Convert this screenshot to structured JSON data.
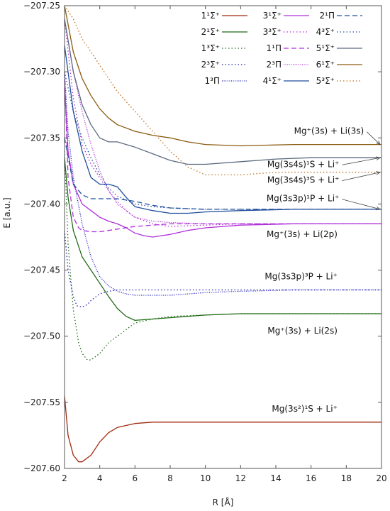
{
  "chart_data": {
    "type": "line",
    "title": "",
    "xlabel": "R [Å]",
    "ylabel": "E [a.u.]",
    "xlim": [
      2,
      20
    ],
    "ylim": [
      -207.6,
      -207.25
    ],
    "xticks": [
      2,
      4,
      6,
      8,
      10,
      12,
      14,
      16,
      18,
      20
    ],
    "yticks": [
      -207.25,
      -207.3,
      -207.35,
      -207.4,
      -207.45,
      -207.5,
      -207.55,
      -207.6
    ],
    "ytick_labels": [
      "−207.25",
      "−207.30",
      "−207.35",
      "−207.40",
      "−207.45",
      "−207.50",
      "−207.55",
      "−207.60"
    ],
    "grid": false,
    "legend_position": "top-right",
    "series": [
      {
        "name": "1¹Σ⁺",
        "color": "#a0290f",
        "dash": "solid",
        "x": [
          2,
          2.2,
          2.5,
          2.8,
          3,
          3.5,
          4,
          4.5,
          5,
          6,
          7,
          8,
          10,
          12,
          15,
          20
        ],
        "y": [
          -207.545,
          -207.575,
          -207.59,
          -207.595,
          -207.595,
          -207.59,
          -207.58,
          -207.573,
          -207.569,
          -207.566,
          -207.565,
          -207.565,
          -207.565,
          -207.565,
          -207.565,
          -207.565
        ]
      },
      {
        "name": "2¹Σ⁺",
        "color": "#1f6b14",
        "dash": "solid",
        "x": [
          2,
          2.2,
          2.5,
          3,
          3.5,
          4,
          4.5,
          5,
          5.5,
          6,
          7,
          8,
          10,
          12,
          15,
          20
        ],
        "y": [
          -207.365,
          -207.395,
          -207.42,
          -207.44,
          -207.45,
          -207.46,
          -207.47,
          -207.479,
          -207.485,
          -207.488,
          -207.487,
          -207.486,
          -207.484,
          -207.483,
          -207.483,
          -207.483
        ]
      },
      {
        "name": "1³Σ⁺",
        "color": "#1f6b14",
        "dash": "dot",
        "x": [
          2,
          2.2,
          2.5,
          2.8,
          3,
          3.3,
          3.5,
          4,
          4.5,
          5,
          5.5,
          6,
          7,
          8,
          10,
          12,
          20
        ],
        "y": [
          -207.36,
          -207.43,
          -207.48,
          -207.505,
          -207.513,
          -207.518,
          -207.518,
          -207.513,
          -207.505,
          -207.5,
          -207.495,
          -207.49,
          -207.487,
          -207.485,
          -207.484,
          -207.483,
          -207.483
        ]
      },
      {
        "name": "2³Σ⁺",
        "color": "#2222bb",
        "dash": "dot",
        "x": [
          2,
          2.2,
          2.5,
          2.7,
          3,
          3.3,
          3.5,
          4,
          4.5,
          5,
          6,
          8,
          10,
          12,
          20
        ],
        "y": [
          -207.42,
          -207.45,
          -207.47,
          -207.477,
          -207.478,
          -207.476,
          -207.473,
          -207.468,
          -207.466,
          -207.465,
          -207.465,
          -207.465,
          -207.465,
          -207.465,
          -207.465
        ]
      },
      {
        "name": "1³Π",
        "color": "#2222bb",
        "dash": "fine",
        "x": [
          2,
          2.2,
          2.5,
          3,
          3.5,
          4,
          4.5,
          5,
          5.5,
          6,
          7,
          8,
          10,
          12,
          15,
          20
        ],
        "y": [
          -207.3,
          -207.345,
          -207.38,
          -207.415,
          -207.44,
          -207.455,
          -207.462,
          -207.466,
          -207.468,
          -207.469,
          -207.469,
          -207.469,
          -207.467,
          -207.466,
          -207.465,
          -207.465
        ]
      },
      {
        "name": "3¹Σ⁺",
        "color": "#b030d8",
        "dash": "solid",
        "x": [
          2,
          2.2,
          2.5,
          3,
          3.5,
          4,
          4.5,
          5,
          5.5,
          6,
          6.5,
          7,
          7.5,
          8,
          9,
          10,
          12,
          15,
          20
        ],
        "y": [
          -207.31,
          -207.36,
          -207.385,
          -207.4,
          -207.405,
          -207.41,
          -207.413,
          -207.415,
          -207.418,
          -207.422,
          -207.424,
          -207.425,
          -207.424,
          -207.423,
          -207.42,
          -207.418,
          -207.416,
          -207.415,
          -207.415
        ]
      },
      {
        "name": "3³Σ⁺",
        "color": "#b030d8",
        "dash": "dot",
        "x": [
          2,
          2.5,
          3,
          3.5,
          4,
          4.5,
          5,
          5.5,
          6,
          7,
          8,
          10,
          12,
          20
        ],
        "y": [
          -207.26,
          -207.32,
          -207.355,
          -207.37,
          -207.38,
          -207.39,
          -207.398,
          -207.405,
          -207.41,
          -207.415,
          -207.417,
          -207.416,
          -207.415,
          -207.415
        ]
      },
      {
        "name": "1¹Π",
        "color": "#b030d8",
        "dash": "dash",
        "x": [
          2,
          2.2,
          2.5,
          2.8,
          3,
          3.5,
          4,
          4.5,
          5,
          6,
          7,
          8,
          10,
          20
        ],
        "y": [
          -207.3,
          -207.38,
          -207.41,
          -207.418,
          -207.42,
          -207.421,
          -207.421,
          -207.42,
          -207.419,
          -207.417,
          -207.416,
          -207.415,
          -207.415,
          -207.415
        ]
      },
      {
        "name": "2³Π",
        "color": "#b030d8",
        "dash": "fine",
        "x": [
          2,
          2.5,
          3,
          3.5,
          4,
          4.5,
          5,
          5.5,
          6,
          7,
          8,
          10,
          20
        ],
        "y": [
          -207.26,
          -207.3,
          -207.33,
          -207.355,
          -207.375,
          -207.39,
          -207.4,
          -207.405,
          -207.41,
          -207.413,
          -207.414,
          -207.415,
          -207.415
        ]
      },
      {
        "name": "4¹Σ⁺",
        "color": "#1f4e9c",
        "dash": "solid",
        "x": [
          2,
          2.5,
          3,
          3.5,
          4,
          4.5,
          5,
          5.5,
          6,
          7,
          8,
          9,
          10,
          12,
          15,
          20
        ],
        "y": [
          -207.28,
          -207.33,
          -207.36,
          -207.38,
          -207.385,
          -207.385,
          -207.387,
          -207.395,
          -207.402,
          -207.405,
          -207.407,
          -207.407,
          -207.406,
          -207.405,
          -207.404,
          -207.404
        ]
      },
      {
        "name": "2¹Π",
        "color": "#1f4e9c",
        "dash": "dash",
        "x": [
          2,
          2.5,
          3,
          3.5,
          4,
          4.5,
          5,
          6,
          7,
          8,
          10,
          12,
          20
        ],
        "y": [
          -207.35,
          -207.385,
          -207.393,
          -207.396,
          -207.396,
          -207.396,
          -207.396,
          -207.398,
          -207.401,
          -207.403,
          -207.404,
          -207.404,
          -207.404
        ]
      },
      {
        "name": "4³Σ⁺",
        "color": "#1f4e9c",
        "dash": "dot",
        "x": [
          2,
          2.5,
          3,
          3.5,
          4,
          4.5,
          5,
          6,
          7,
          8,
          10,
          20
        ],
        "y": [
          -207.3,
          -207.33,
          -207.35,
          -207.365,
          -207.378,
          -207.388,
          -207.394,
          -207.4,
          -207.402,
          -207.403,
          -207.404,
          -207.404
        ]
      },
      {
        "name": "5¹Σ⁺",
        "color": "#5a6a80",
        "dash": "solid",
        "x": [
          2,
          2.5,
          3,
          3.5,
          4,
          4.5,
          5,
          5.5,
          6,
          7,
          8,
          9,
          10,
          12,
          14,
          16,
          20
        ],
        "y": [
          -207.26,
          -207.3,
          -207.325,
          -207.34,
          -207.35,
          -207.353,
          -207.353,
          -207.355,
          -207.357,
          -207.362,
          -207.367,
          -207.37,
          -207.37,
          -207.368,
          -207.366,
          -207.365,
          -207.365
        ]
      },
      {
        "name": "6¹Σ⁺",
        "color": "#8a5a10",
        "dash": "solid",
        "x": [
          2,
          2.5,
          3,
          3.5,
          4,
          4.5,
          5,
          6,
          7,
          8,
          9,
          10,
          12,
          15,
          20
        ],
        "y": [
          -207.25,
          -207.285,
          -207.305,
          -207.318,
          -207.328,
          -207.335,
          -207.34,
          -207.345,
          -207.348,
          -207.35,
          -207.353,
          -207.355,
          -207.356,
          -207.355,
          -207.355
        ]
      },
      {
        "name": "5³Σ⁺",
        "color": "#c07020",
        "dash": "dot",
        "x": [
          2,
          2.5,
          3,
          3.5,
          4,
          4.5,
          5,
          6,
          7,
          8,
          9,
          10,
          12,
          14,
          16,
          20
        ],
        "y": [
          -207.25,
          -207.26,
          -207.275,
          -207.285,
          -207.295,
          -207.305,
          -207.315,
          -207.33,
          -207.345,
          -207.36,
          -207.372,
          -207.378,
          -207.378,
          -207.376,
          -207.376,
          -207.376
        ]
      }
    ],
    "annotations": [
      {
        "text": "Mg⁺(3s) + Li(3s)",
        "x": 19,
        "y": -207.347,
        "arrow_to": [
          20,
          -207.355
        ]
      },
      {
        "text": "Mg(3s4s)¹S + Li⁺",
        "x": 17.6,
        "y": -207.372,
        "arrow_to": [
          20,
          -207.365
        ]
      },
      {
        "text": "Mg(3s4s)³S + Li⁺",
        "x": 17.6,
        "y": -207.384,
        "arrow_to": [
          20,
          -207.376
        ]
      },
      {
        "text": "Mg(3s3p)¹P + Li⁺",
        "x": 17.6,
        "y": -207.398,
        "arrow_to": [
          20,
          -207.404
        ]
      },
      {
        "text": "Mg⁺(3s) + Li(2p)",
        "x": 17.5,
        "y": -207.425
      },
      {
        "text": "Mg(3s3p)³P + Li⁺",
        "x": 17.5,
        "y": -207.457
      },
      {
        "text": "Mg⁺(3s) + Li(2s)",
        "x": 17.5,
        "y": -207.498
      },
      {
        "text": "Mg(3s²)¹S + Li⁺",
        "x": 17.5,
        "y": -207.557
      }
    ]
  }
}
